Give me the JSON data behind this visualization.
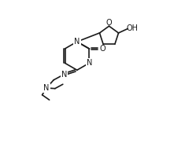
{
  "bg_color": "#ffffff",
  "line_color": "#1a1a1a",
  "line_width": 1.2,
  "font_size": 7.0,
  "figsize": [
    2.21,
    1.82
  ],
  "dpi": 100,
  "xlim": [
    0,
    10
  ],
  "ylim": [
    0,
    10
  ]
}
